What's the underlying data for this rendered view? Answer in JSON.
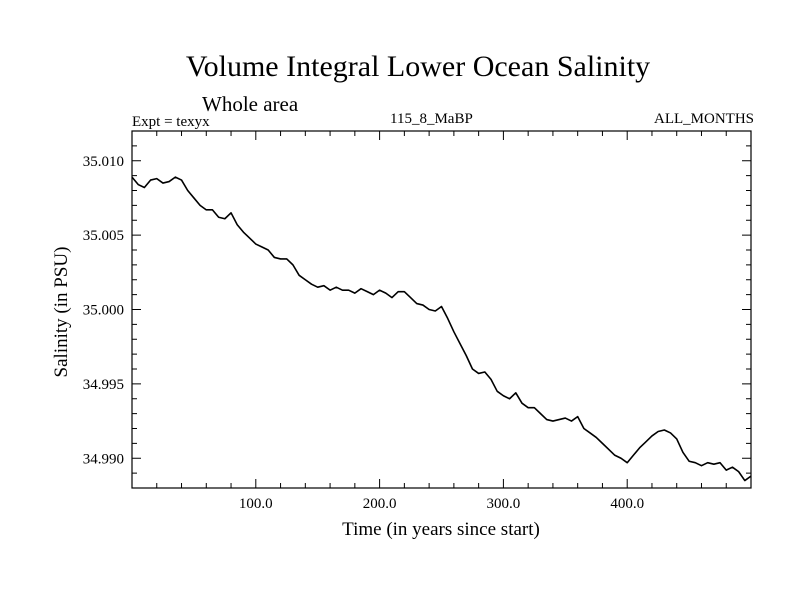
{
  "chart_data": {
    "type": "line",
    "title": "Volume Integral Lower Ocean Salinity",
    "subtitle": "Whole area",
    "annotations": {
      "experiment": "Expt = texyx",
      "run": "115_8_MaBP",
      "months": "ALL_MONTHS"
    },
    "xlabel": "Time (in years since start)",
    "ylabel": "Salinity (in PSU)",
    "xlim": [
      0,
      500
    ],
    "ylim": [
      34.988,
      35.012
    ],
    "x_ticks": [
      100,
      200,
      300,
      400
    ],
    "x_tick_labels": [
      "100.0",
      "200.0",
      "300.0",
      "400.0"
    ],
    "y_ticks": [
      34.99,
      34.995,
      35.0,
      35.005,
      35.01
    ],
    "y_tick_labels": [
      "34.990",
      "34.995",
      "35.000",
      "35.005",
      "35.010"
    ],
    "grid": false,
    "series": [
      {
        "color": "#000000",
        "x": [
          0,
          5,
          10,
          15,
          20,
          25,
          30,
          35,
          40,
          45,
          50,
          55,
          60,
          65,
          70,
          75,
          80,
          85,
          90,
          95,
          100,
          105,
          110,
          115,
          120,
          125,
          130,
          135,
          140,
          145,
          150,
          155,
          160,
          165,
          170,
          175,
          180,
          185,
          190,
          195,
          200,
          205,
          210,
          215,
          220,
          225,
          230,
          235,
          240,
          245,
          250,
          255,
          260,
          265,
          270,
          275,
          280,
          285,
          290,
          295,
          300,
          305,
          310,
          315,
          320,
          325,
          330,
          335,
          340,
          345,
          350,
          355,
          360,
          365,
          370,
          375,
          380,
          385,
          390,
          395,
          400,
          405,
          410,
          415,
          420,
          425,
          430,
          435,
          440,
          445,
          450,
          455,
          460,
          465,
          470,
          475,
          480,
          485,
          490,
          495,
          500
        ],
        "values": [
          35.0089,
          35.0084,
          35.0082,
          35.0087,
          35.0088,
          35.0085,
          35.0086,
          35.0089,
          35.0087,
          35.008,
          35.0075,
          35.007,
          35.0067,
          35.0067,
          35.0062,
          35.0061,
          35.0065,
          35.0057,
          35.0052,
          35.0048,
          35.0044,
          35.0042,
          35.004,
          35.0035,
          35.0034,
          35.0034,
          35.003,
          35.0023,
          35.002,
          35.0017,
          35.0015,
          35.0016,
          35.0013,
          35.0015,
          35.0013,
          35.0013,
          35.0011,
          35.0014,
          35.0012,
          35.001,
          35.0013,
          35.0011,
          35.0008,
          35.0012,
          35.0012,
          35.0008,
          35.0004,
          35.0003,
          35.0,
          34.9999,
          35.0002,
          34.9994,
          34.9985,
          34.9977,
          34.9969,
          34.996,
          34.9957,
          34.9958,
          34.9953,
          34.9945,
          34.9942,
          34.994,
          34.9944,
          34.9937,
          34.9934,
          34.9934,
          34.993,
          34.9926,
          34.9925,
          34.9926,
          34.9927,
          34.9925,
          34.9928,
          34.992,
          34.9917,
          34.9914,
          34.991,
          34.9906,
          34.9902,
          34.99,
          34.9897,
          34.9902,
          34.9907,
          34.9911,
          34.9915,
          34.9918,
          34.9919,
          34.9917,
          34.9913,
          34.9904,
          34.9898,
          34.9897,
          34.9895,
          34.9897,
          34.9896,
          34.9897,
          34.9892,
          34.9894,
          34.9891,
          34.9885,
          34.9888
        ]
      }
    ]
  }
}
